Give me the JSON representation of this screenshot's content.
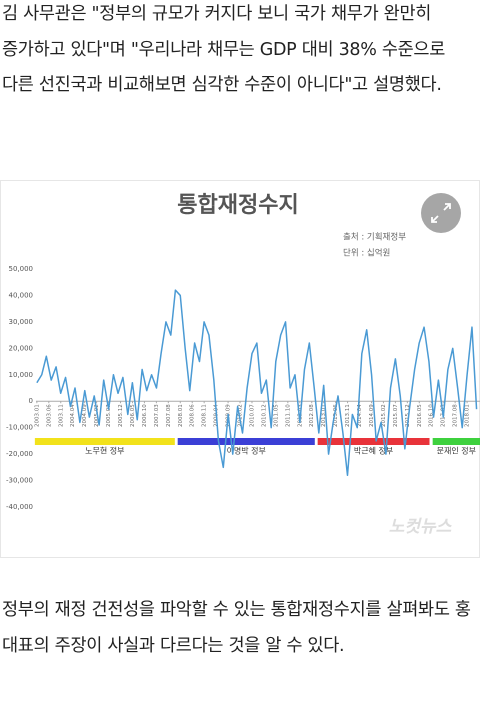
{
  "article": {
    "paragraphs": [
      "김 사무관은 \"정부의 규모가 커지다 보니 국가 채무가 완만히 증가하고 있다\"며 \"우리나라 채무는 GDP 대비 38% 수준으로 다른 선진국과 비교해보면 심각한 수준이 아니다\"고 설명했다.",
      "정부의 재정 건전성을 파악할 수 있는 통합재정수지를 살펴봐도 홍 대표의 주장이 사실과 다르다는 것을 알 수 있다."
    ]
  },
  "chart_data": {
    "type": "line",
    "title": "통합재정수지",
    "annotations": [
      "출처 : 기획재정부",
      "단위 : 십억원"
    ],
    "watermark": "노컷뉴스",
    "x": [
      2003,
      2003.17,
      2003.33,
      2003.5,
      2003.67,
      2003.83,
      2004,
      2004.17,
      2004.33,
      2004.5,
      2004.67,
      2004.83,
      2005,
      2005.17,
      2005.33,
      2005.5,
      2005.67,
      2005.83,
      2006,
      2006.17,
      2006.33,
      2006.5,
      2006.67,
      2006.83,
      2007,
      2007.17,
      2007.33,
      2007.5,
      2007.67,
      2007.83,
      2008,
      2008.17,
      2008.33,
      2008.5,
      2008.67,
      2008.83,
      2009,
      2009.17,
      2009.33,
      2009.5,
      2009.67,
      2009.83,
      2010,
      2010.17,
      2010.33,
      2010.5,
      2010.67,
      2010.83,
      2011,
      2011.17,
      2011.33,
      2011.5,
      2011.67,
      2011.83,
      2012,
      2012.17,
      2012.33,
      2012.5,
      2012.67,
      2012.83,
      2013,
      2013.17,
      2013.33,
      2013.5,
      2013.67,
      2013.83,
      2014,
      2014.17,
      2014.33,
      2014.5,
      2014.67,
      2014.83,
      2015,
      2015.17,
      2015.33,
      2015.5,
      2015.67,
      2015.83,
      2016,
      2016.17,
      2016.33,
      2016.5,
      2016.67,
      2016.83,
      2017,
      2017.17,
      2017.33,
      2017.5,
      2017.67,
      2017.83,
      2018,
      2018.17,
      2018.33
    ],
    "series": [
      {
        "color": "#4a9ad4",
        "values": [
          7000,
          10000,
          17000,
          8000,
          13000,
          3000,
          9000,
          -2000,
          5000,
          -8000,
          4000,
          -6000,
          2000,
          -9000,
          8000,
          -3000,
          10000,
          3000,
          9000,
          -5000,
          7000,
          -7000,
          12000,
          4000,
          10000,
          5000,
          18000,
          30000,
          25000,
          42000,
          40000,
          20000,
          4000,
          22000,
          15000,
          30000,
          25000,
          8000,
          -15000,
          -25000,
          -5000,
          -20000,
          -2000,
          -12000,
          5000,
          18000,
          22000,
          3000,
          8000,
          -10000,
          15000,
          25000,
          30000,
          5000,
          10000,
          -8000,
          12000,
          22000,
          5000,
          -12000,
          6000,
          -20000,
          -8000,
          2000,
          -12000,
          -28000,
          -5000,
          -10000,
          18000,
          27000,
          10000,
          -15000,
          -8000,
          -20000,
          5000,
          16000,
          2000,
          -18000,
          -2000,
          12000,
          22000,
          28000,
          15000,
          -6000,
          8000,
          -6000,
          12000,
          20000,
          5000,
          -10000,
          10000,
          28000,
          -3000
        ]
      }
    ],
    "xlim": [
      2002.9,
      2018.45
    ],
    "xticks": [
      {
        "value": 2003,
        "label": "2003.01"
      },
      {
        "value": 2003.417,
        "label": "2003.06"
      },
      {
        "value": 2003.833,
        "label": "2003.11"
      },
      {
        "value": 2004.25,
        "label": "2004.04"
      },
      {
        "value": 2004.667,
        "label": "2004.09"
      },
      {
        "value": 2005.083,
        "label": "2005.02"
      },
      {
        "value": 2005.5,
        "label": "2005.07"
      },
      {
        "value": 2005.917,
        "label": "2005.12"
      },
      {
        "value": 2006.333,
        "label": "2006.05"
      },
      {
        "value": 2006.75,
        "label": "2006.10"
      },
      {
        "value": 2007.167,
        "label": "2007.03"
      },
      {
        "value": 2007.583,
        "label": "2007.08"
      },
      {
        "value": 2008,
        "label": "2008.01"
      },
      {
        "value": 2008.417,
        "label": "2008.06"
      },
      {
        "value": 2008.833,
        "label": "2008.11"
      },
      {
        "value": 2009.25,
        "label": "2009.04"
      },
      {
        "value": 2009.667,
        "label": "2009.09"
      },
      {
        "value": 2010.083,
        "label": "2010.02"
      },
      {
        "value": 2010.5,
        "label": "2010.07"
      },
      {
        "value": 2010.917,
        "label": "2010.12"
      },
      {
        "value": 2011.333,
        "label": "2011.05"
      },
      {
        "value": 2011.75,
        "label": "2011.10"
      },
      {
        "value": 2012.167,
        "label": "2012.03"
      },
      {
        "value": 2012.583,
        "label": "2012.08"
      },
      {
        "value": 2013,
        "label": "2013.01"
      },
      {
        "value": 2013.417,
        "label": "2013.06"
      },
      {
        "value": 2013.833,
        "label": "2013.11"
      },
      {
        "value": 2014.25,
        "label": "2014.04"
      },
      {
        "value": 2014.667,
        "label": "2014.09"
      },
      {
        "value": 2015.083,
        "label": "2015.02"
      },
      {
        "value": 2015.5,
        "label": "2015.07"
      },
      {
        "value": 2015.917,
        "label": "2015.12"
      },
      {
        "value": 2016.333,
        "label": "2016.05"
      },
      {
        "value": 2016.75,
        "label": "2016.10"
      },
      {
        "value": 2017.167,
        "label": "2017.03"
      },
      {
        "value": 2017.583,
        "label": "2017.08"
      },
      {
        "value": 2018,
        "label": "2018.01"
      }
    ],
    "ylim": [
      -40000,
      50000
    ],
    "yticks": [
      {
        "value": 50000,
        "label": "50,000"
      },
      {
        "value": 40000,
        "label": "40,000"
      },
      {
        "value": 30000,
        "label": "30,000"
      },
      {
        "value": 20000,
        "label": "20,000"
      },
      {
        "value": 10000,
        "label": "10,000"
      },
      0,
      {
        "value": -10000,
        "label": "-10,000"
      },
      {
        "value": -20000,
        "label": "-20,000"
      },
      {
        "value": -30000,
        "label": "-30,000"
      },
      {
        "value": -40000,
        "label": "-40,000"
      }
    ],
    "periods": [
      {
        "label": "노무현 정부",
        "color": "#f2e21b",
        "start": 2002.93,
        "end": 2007.81
      },
      {
        "label": "이명박 정부",
        "color": "#3b3fd6",
        "start": 2007.91,
        "end": 2012.69
      },
      {
        "label": "박근혜 정부",
        "color": "#e8333a",
        "start": 2012.79,
        "end": 2016.69
      },
      {
        "label": "문재인 정부",
        "color": "#3ed13e",
        "start": 2016.8,
        "end": 2018.45
      }
    ]
  }
}
